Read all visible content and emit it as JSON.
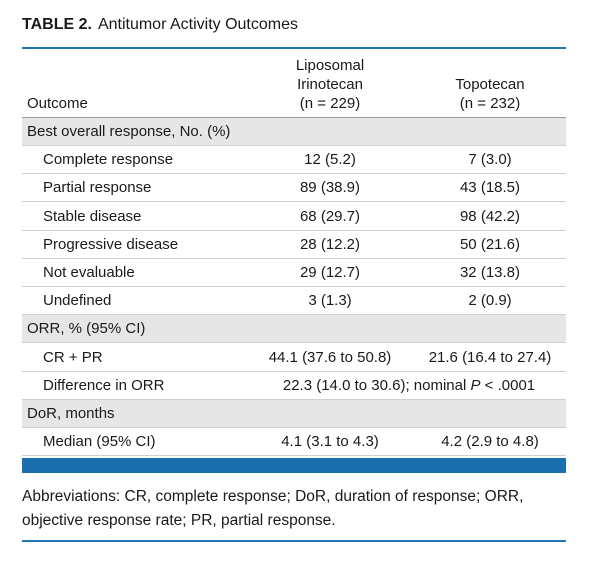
{
  "title": {
    "label": "TABLE 2.",
    "text": "Antitumor Activity Outcomes"
  },
  "table": {
    "header": {
      "outcome": "Outcome",
      "columns": [
        [
          "Liposomal",
          "Irinotecan",
          "(n = 229)"
        ],
        [
          "Topotecan",
          "(n = 232)"
        ]
      ]
    },
    "rows": [
      {
        "section": "Best overall response, No. (%)"
      },
      {
        "label": "Complete response",
        "cells": [
          "12 (5.2)",
          "7 (3.0)"
        ]
      },
      {
        "label": "Partial response",
        "cells": [
          "89 (38.9)",
          "43 (18.5)"
        ]
      },
      {
        "label": "Stable disease",
        "cells": [
          "68 (29.7)",
          "98 (42.2)"
        ]
      },
      {
        "label": "Progressive disease",
        "cells": [
          "28 (12.2)",
          "50 (21.6)"
        ]
      },
      {
        "label": "Not evaluable",
        "cells": [
          "29 (12.7)",
          "32 (13.8)"
        ]
      },
      {
        "label": "Undefined",
        "cells": [
          "3 (1.3)",
          "2 (0.9)"
        ]
      },
      {
        "section": "ORR, % (95% CI)"
      },
      {
        "label": "CR + PR",
        "cells": [
          "44.1 (37.6 to 50.8)",
          "21.6 (16.4 to 27.4)"
        ]
      },
      {
        "label": "Difference in ORR",
        "span": {
          "before": "22.3 (14.0 to 30.6); nominal",
          "italic": "P",
          "after": "< .0001"
        }
      },
      {
        "section": "DoR, months"
      },
      {
        "label": "Median (95% CI)",
        "cells": [
          "4.1 (3.1 to 4.3)",
          "4.2 (2.9 to 4.8)"
        ]
      }
    ]
  },
  "footnote": "Abbreviations: CR, complete response; DoR, duration of response; ORR, objective response rate; PR, partial response."
}
